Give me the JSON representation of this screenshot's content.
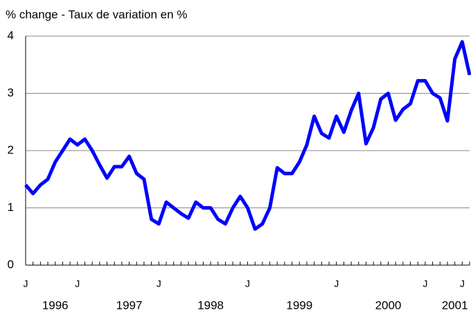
{
  "chart_data": {
    "type": "line",
    "title": "% change - Taux de variation en %",
    "categories": [
      "J",
      null,
      null,
      null,
      null,
      null,
      null,
      "J",
      null,
      null,
      null,
      null,
      null,
      null,
      null,
      null,
      null,
      null,
      "J",
      null,
      null,
      null,
      null,
      null,
      null,
      null,
      null,
      null,
      null,
      null,
      "J",
      null,
      null,
      null,
      null,
      null,
      null,
      null,
      null,
      null,
      null,
      null,
      "J",
      null,
      null,
      null,
      null,
      null,
      null,
      null,
      null,
      null,
      null,
      null,
      "J",
      null,
      null,
      null,
      null,
      "J",
      null
    ],
    "years": [
      null,
      null,
      null,
      null,
      "1996",
      null,
      null,
      null,
      null,
      null,
      null,
      null,
      null,
      null,
      "1997",
      null,
      null,
      null,
      null,
      null,
      null,
      null,
      null,
      null,
      null,
      "1998",
      null,
      null,
      null,
      null,
      null,
      null,
      null,
      null,
      null,
      null,
      null,
      "1999",
      null,
      null,
      null,
      null,
      null,
      null,
      null,
      null,
      null,
      null,
      null,
      "2000",
      null,
      null,
      null,
      null,
      null,
      null,
      null,
      null,
      "2001",
      null,
      null
    ],
    "series": [
      {
        "color": "#0000ff",
        "values": [
          1.4,
          1.25,
          1.4,
          1.5,
          1.8,
          2.0,
          2.2,
          2.1,
          2.2,
          2.0,
          1.75,
          1.52,
          1.72,
          1.72,
          1.9,
          1.6,
          1.5,
          0.8,
          0.72,
          1.1,
          1.0,
          0.9,
          0.82,
          1.1,
          1.0,
          1.0,
          0.8,
          0.72,
          1.0,
          1.2,
          1.0,
          0.63,
          0.72,
          1.0,
          1.7,
          1.6,
          1.6,
          1.8,
          2.1,
          2.6,
          2.3,
          2.22,
          2.6,
          2.32,
          2.7,
          3.0,
          2.12,
          2.4,
          2.9,
          3.0,
          2.53,
          2.72,
          2.82,
          3.22,
          3.22,
          3.0,
          2.92,
          2.52,
          3.6,
          3.9,
          3.32
        ]
      }
    ],
    "ylim": [
      0,
      4
    ],
    "yticks": [
      0,
      1,
      2,
      3,
      4
    ],
    "grid": true
  }
}
